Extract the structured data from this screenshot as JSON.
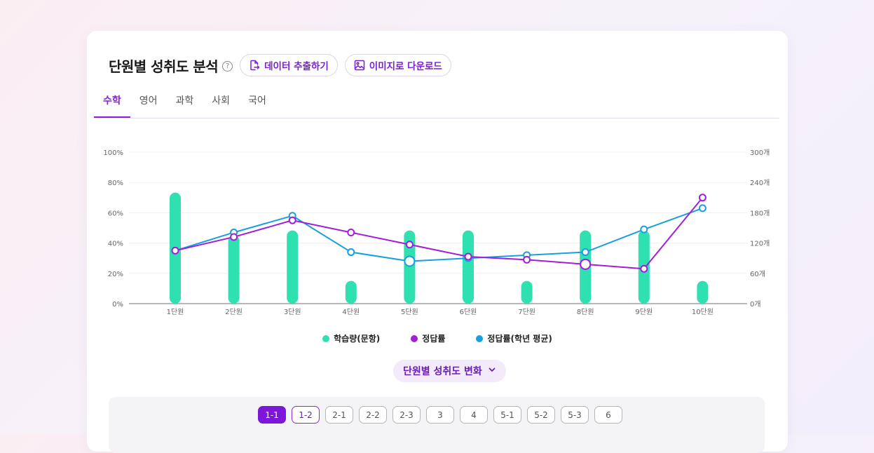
{
  "header": {
    "title": "단원별 성취도 분석",
    "help_icon": "?",
    "export_label": "데이터 추출하기",
    "download_label": "이미지로 다운로드"
  },
  "tabs": [
    {
      "label": "수학",
      "active": true
    },
    {
      "label": "영어",
      "active": false
    },
    {
      "label": "과학",
      "active": false
    },
    {
      "label": "사회",
      "active": false
    },
    {
      "label": "국어",
      "active": false
    }
  ],
  "colors": {
    "accent": "#8a1fd6",
    "bar": "#2fe0b0",
    "correct": "#a11fd8",
    "grade_avg": "#179fe0"
  },
  "chart_data": {
    "type": "bar",
    "categories": [
      "1단원",
      "2단원",
      "3단원",
      "4단원",
      "5단원",
      "6단원",
      "7단원",
      "8단원",
      "9단원",
      "10단원"
    ],
    "y_left": {
      "ticks": [
        "0%",
        "20%",
        "40%",
        "60%",
        "80%",
        "100%"
      ],
      "range": [
        0,
        100
      ]
    },
    "y_right": {
      "ticks": [
        "0개",
        "60개",
        "120개",
        "180개",
        "240개",
        "300개"
      ],
      "range": [
        0,
        300
      ]
    },
    "series": [
      {
        "name": "학습량(문항)",
        "type": "bar",
        "axis": "right",
        "values": [
          220,
          135,
          145,
          45,
          145,
          145,
          45,
          145,
          145,
          45
        ]
      },
      {
        "name": "정답률",
        "type": "line",
        "axis": "left",
        "values": [
          35,
          44,
          55,
          47,
          39,
          31,
          29,
          26,
          23,
          70
        ]
      },
      {
        "name": "정답률(학년 평균)",
        "type": "line",
        "axis": "left",
        "values": [
          35,
          47,
          58,
          34,
          28,
          30,
          32,
          34,
          49,
          63
        ]
      }
    ],
    "highlighted_points": [
      {
        "series": "정답률(학년 평균)",
        "category": "5단원"
      },
      {
        "series": "정답률",
        "category": "8단원"
      }
    ],
    "grid": true,
    "legend": "bottom-center"
  },
  "toggle": {
    "label": "단원별 성취도 변화"
  },
  "chips": [
    {
      "label": "1-1",
      "state": "active"
    },
    {
      "label": "1-2",
      "state": "selected"
    },
    {
      "label": "2-1",
      "state": "normal"
    },
    {
      "label": "2-2",
      "state": "normal"
    },
    {
      "label": "2-3",
      "state": "normal"
    },
    {
      "label": "3",
      "state": "normal"
    },
    {
      "label": "4",
      "state": "normal"
    },
    {
      "label": "5-1",
      "state": "normal"
    },
    {
      "label": "5-2",
      "state": "normal"
    },
    {
      "label": "5-3",
      "state": "normal"
    },
    {
      "label": "6",
      "state": "normal"
    }
  ]
}
